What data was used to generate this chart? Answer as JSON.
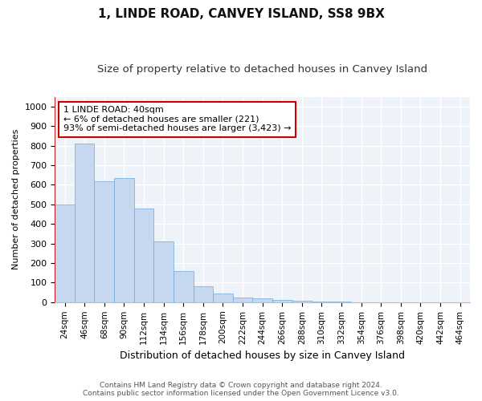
{
  "title": "1, LINDE ROAD, CANVEY ISLAND, SS8 9BX",
  "subtitle": "Size of property relative to detached houses in Canvey Island",
  "xlabel": "Distribution of detached houses by size in Canvey Island",
  "ylabel": "Number of detached properties",
  "footer_line1": "Contains HM Land Registry data © Crown copyright and database right 2024.",
  "footer_line2": "Contains public sector information licensed under the Open Government Licence v3.0.",
  "categories": [
    "24sqm",
    "46sqm",
    "68sqm",
    "90sqm",
    "112sqm",
    "134sqm",
    "156sqm",
    "178sqm",
    "200sqm",
    "222sqm",
    "244sqm",
    "266sqm",
    "288sqm",
    "310sqm",
    "332sqm",
    "354sqm",
    "376sqm",
    "398sqm",
    "420sqm",
    "442sqm",
    "464sqm"
  ],
  "values": [
    500,
    810,
    620,
    635,
    480,
    310,
    160,
    80,
    45,
    25,
    20,
    13,
    8,
    5,
    3,
    1,
    1,
    0,
    0,
    0,
    0
  ],
  "bar_color": "#c5d8f0",
  "bar_edge_color": "#6fa8dc",
  "annotation_line1": "1 LINDE ROAD: 40sqm",
  "annotation_line2": "← 6% of detached houses are smaller (221)",
  "annotation_line3": "93% of semi-detached houses are larger (3,423) →",
  "vline_color": "#cc0000",
  "annotation_box_edgecolor": "#cc0000",
  "ylim": [
    0,
    1050
  ],
  "yticks": [
    0,
    100,
    200,
    300,
    400,
    500,
    600,
    700,
    800,
    900,
    1000
  ],
  "bg_color": "#eef2f9",
  "grid_color": "#ffffff",
  "title_fontsize": 11,
  "subtitle_fontsize": 9.5,
  "xlabel_fontsize": 9,
  "ylabel_fontsize": 8,
  "tick_fontsize": 7.5,
  "footer_fontsize": 6.5
}
